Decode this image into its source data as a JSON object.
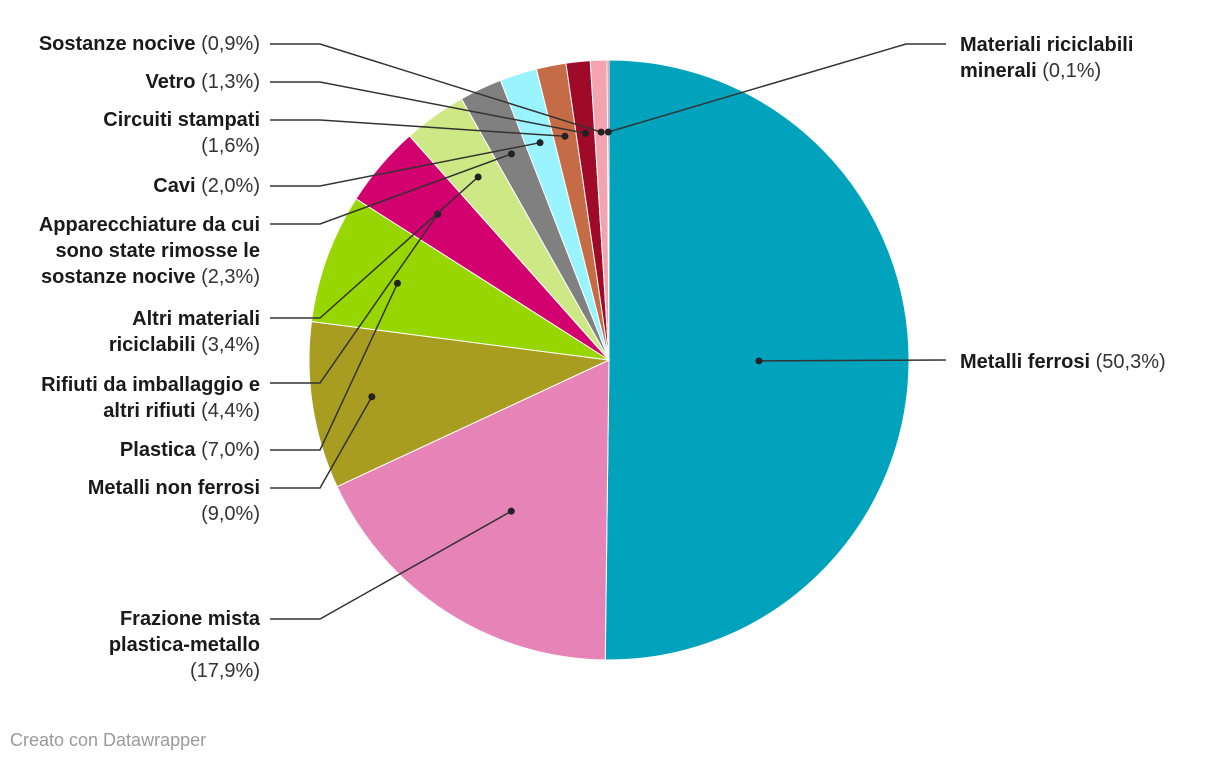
{
  "chart_data": {
    "type": "pie",
    "slices": [
      {
        "label": "Metalli ferrosi",
        "value": 50.3,
        "percent_text": "(50,3%)",
        "color": "#00a3bb"
      },
      {
        "label": "Frazione mista plastica-metallo",
        "value": 17.9,
        "percent_text": "(17,9%)",
        "color": "#e684b8"
      },
      {
        "label": "Metalli non ferrosi",
        "value": 9.0,
        "percent_text": "(9,0%)",
        "color": "#a89c21"
      },
      {
        "label": "Plastica",
        "value": 7.0,
        "percent_text": "(7,0%)",
        "color": "#97d600"
      },
      {
        "label": "Rifiuti da imballaggio e altri rifiuti",
        "value": 4.4,
        "percent_text": "(4,4%)",
        "color": "#d3006f"
      },
      {
        "label": "Altri materiali riciclabili",
        "value": 3.4,
        "percent_text": "(3,4%)",
        "color": "#cce985"
      },
      {
        "label": "Apparecchiature da cui sono state rimosse le sostanze nocive",
        "value": 2.3,
        "percent_text": "(2,3%)",
        "color": "#808080"
      },
      {
        "label": "Cavi",
        "value": 2.0,
        "percent_text": "(2,0%)",
        "color": "#99f4ff"
      },
      {
        "label": "Circuiti stampati",
        "value": 1.6,
        "percent_text": "(1,6%)",
        "color": "#c56b45"
      },
      {
        "label": "Vetro",
        "value": 1.3,
        "percent_text": "(1,3%)",
        "color": "#9e0a28"
      },
      {
        "label": "Sostanze nocive",
        "value": 0.9,
        "percent_text": "(0,9%)",
        "color": "#f4a3b0"
      },
      {
        "label": "Materiali riciclabili minerali",
        "value": 0.1,
        "percent_text": "(0,1%)",
        "color": "#d04a4a"
      }
    ]
  },
  "footer": {
    "credit": "Creato con Datawrapper"
  }
}
